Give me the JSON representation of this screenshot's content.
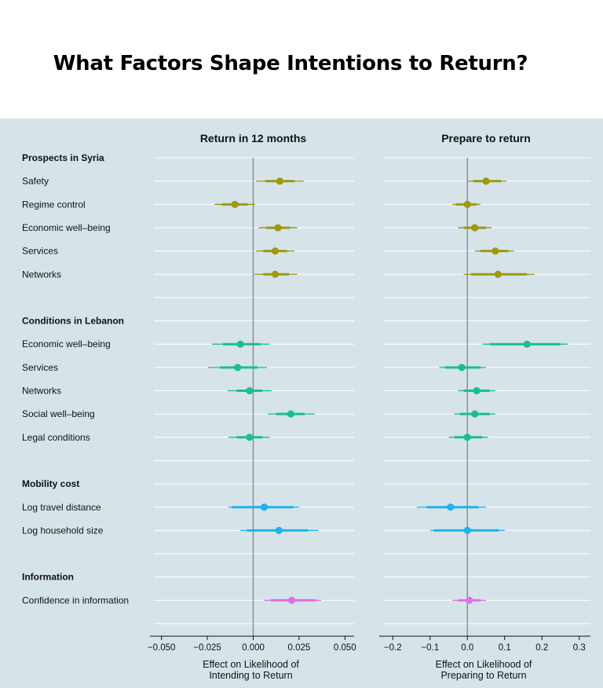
{
  "page_title": "What Factors Shape Intentions to Return?",
  "colors": {
    "background": "#d6e4ea",
    "prospects": "#9e9a0b",
    "conditions": "#19c08c",
    "mobility": "#1ab4ee",
    "information": "#e070e6",
    "zero_line": "#8a8a8a",
    "gridline": "#ffffff"
  },
  "chart_data": [
    {
      "type": "scatter",
      "subtype": "coefficient-plot",
      "title": "Return in 12 months",
      "xlabel_lines": [
        "Effect on Likelihood of",
        "Intending to Return"
      ],
      "xlim": [
        -0.055,
        0.055
      ],
      "xticks": [
        -0.05,
        -0.025,
        0.0,
        0.025,
        0.05
      ],
      "xtick_labels": [
        "−0.050",
        "−0.025",
        "0.000",
        "0.025",
        "0.050"
      ],
      "reference_line": 0,
      "grid": true,
      "points": [
        {
          "group": "Prospects in Syria",
          "label": "Safety",
          "estimate": 0.0145,
          "ci90": [
            0.0065,
            0.0225
          ],
          "ci95": [
            0.0015,
            0.0275
          ]
        },
        {
          "group": "Prospects in Syria",
          "label": "Regime control",
          "estimate": -0.01,
          "ci90": [
            -0.017,
            -0.003
          ],
          "ci95": [
            -0.021,
            0.001
          ]
        },
        {
          "group": "Prospects in Syria",
          "label": "Economic well-being",
          "estimate": 0.0135,
          "ci90": [
            0.007,
            0.02
          ],
          "ci95": [
            0.003,
            0.024
          ]
        },
        {
          "group": "Prospects in Syria",
          "label": "Services",
          "estimate": 0.012,
          "ci90": [
            0.0055,
            0.0185
          ],
          "ci95": [
            0.0015,
            0.0225
          ]
        },
        {
          "group": "Prospects in Syria",
          "label": "Networks",
          "estimate": 0.012,
          "ci90": [
            0.0055,
            0.0195
          ],
          "ci95": [
            0.0005,
            0.024
          ]
        },
        {
          "group": "Conditions in Lebanon",
          "label": "Economic well-being",
          "estimate": -0.007,
          "ci90": [
            -0.0165,
            0.004
          ],
          "ci95": [
            -0.0225,
            0.009
          ]
        },
        {
          "group": "Conditions in Lebanon",
          "label": "Services",
          "estimate": -0.0085,
          "ci90": [
            -0.018,
            0.0025
          ],
          "ci95": [
            -0.0245,
            0.0075
          ]
        },
        {
          "group": "Conditions in Lebanon",
          "label": "Networks",
          "estimate": -0.002,
          "ci90": [
            -0.009,
            0.005
          ],
          "ci95": [
            -0.014,
            0.01
          ]
        },
        {
          "group": "Conditions in Lebanon",
          "label": "Social well-being",
          "estimate": 0.0205,
          "ci90": [
            0.0125,
            0.028
          ],
          "ci95": [
            0.008,
            0.0335
          ]
        },
        {
          "group": "Conditions in Lebanon",
          "label": "Legal conditions",
          "estimate": -0.002,
          "ci90": [
            -0.009,
            0.005
          ],
          "ci95": [
            -0.0135,
            0.009
          ]
        },
        {
          "group": "Mobility cost",
          "label": "Log travel distance",
          "estimate": 0.006,
          "ci90": [
            -0.0115,
            0.022
          ],
          "ci95": [
            -0.0135,
            0.025
          ]
        },
        {
          "group": "Mobility cost",
          "label": "Log household size",
          "estimate": 0.014,
          "ci90": [
            -0.0035,
            0.03
          ],
          "ci95": [
            -0.007,
            0.0355
          ]
        },
        {
          "group": "Information",
          "label": "Confidence in information",
          "estimate": 0.021,
          "ci90": [
            0.0095,
            0.034
          ],
          "ci95": [
            0.006,
            0.037
          ]
        }
      ]
    },
    {
      "type": "scatter",
      "subtype": "coefficient-plot",
      "title": "Prepare to return",
      "xlabel_lines": [
        "Effect on Likelihood of",
        "Preparing to Return"
      ],
      "xlim": [
        -0.23,
        0.33
      ],
      "xticks": [
        -0.2,
        -0.1,
        0.0,
        0.1,
        0.2,
        0.3
      ],
      "xtick_labels": [
        "−0.2",
        "−0.1",
        "0.0",
        "0.1",
        "0.2",
        "0.3"
      ],
      "reference_line": 0,
      "grid": true,
      "points": [
        {
          "group": "Prospects in Syria",
          "label": "Safety",
          "estimate": 0.05,
          "ci90": [
            0.015,
            0.09
          ],
          "ci95": [
            0.0,
            0.105
          ]
        },
        {
          "group": "Prospects in Syria",
          "label": "Regime control",
          "estimate": 0.0,
          "ci90": [
            -0.03,
            0.025
          ],
          "ci95": [
            -0.04,
            0.035
          ]
        },
        {
          "group": "Prospects in Syria",
          "label": "Economic well-being",
          "estimate": 0.02,
          "ci90": [
            -0.01,
            0.05
          ],
          "ci95": [
            -0.025,
            0.065
          ]
        },
        {
          "group": "Prospects in Syria",
          "label": "Services",
          "estimate": 0.075,
          "ci90": [
            0.035,
            0.11
          ],
          "ci95": [
            0.02,
            0.125
          ]
        },
        {
          "group": "Prospects in Syria",
          "label": "Networks",
          "estimate": 0.082,
          "ci90": [
            0.01,
            0.16
          ],
          "ci95": [
            -0.01,
            0.18
          ]
        },
        {
          "group": "Conditions in Lebanon",
          "label": "Economic well-being",
          "estimate": 0.16,
          "ci90": [
            0.06,
            0.25
          ],
          "ci95": [
            0.04,
            0.27
          ]
        },
        {
          "group": "Conditions in Lebanon",
          "label": "Services",
          "estimate": -0.015,
          "ci90": [
            -0.06,
            0.035
          ],
          "ci95": [
            -0.075,
            0.05
          ]
        },
        {
          "group": "Conditions in Lebanon",
          "label": "Networks",
          "estimate": 0.025,
          "ci90": [
            -0.01,
            0.06
          ],
          "ci95": [
            -0.025,
            0.075
          ]
        },
        {
          "group": "Conditions in Lebanon",
          "label": "Social well-being",
          "estimate": 0.02,
          "ci90": [
            -0.02,
            0.06
          ],
          "ci95": [
            -0.035,
            0.075
          ]
        },
        {
          "group": "Conditions in Lebanon",
          "label": "Legal conditions",
          "estimate": 0.0,
          "ci90": [
            -0.035,
            0.04
          ],
          "ci95": [
            -0.05,
            0.055
          ]
        },
        {
          "group": "Mobility cost",
          "label": "Log travel distance",
          "estimate": -0.045,
          "ci90": [
            -0.11,
            0.03
          ],
          "ci95": [
            -0.135,
            0.05
          ]
        },
        {
          "group": "Mobility cost",
          "label": "Log household size",
          "estimate": 0.0,
          "ci90": [
            -0.09,
            0.085
          ],
          "ci95": [
            -0.1,
            0.1
          ]
        },
        {
          "group": "Information",
          "label": "Confidence in information",
          "estimate": 0.005,
          "ci90": [
            -0.025,
            0.035
          ],
          "ci95": [
            -0.04,
            0.05
          ]
        }
      ]
    }
  ],
  "rows": [
    {
      "kind": "header",
      "text": "Prospects in Syria",
      "color_key": ""
    },
    {
      "kind": "item",
      "text": "Safety",
      "color_key": "prospects"
    },
    {
      "kind": "item",
      "text": "Regime control",
      "color_key": "prospects"
    },
    {
      "kind": "item",
      "text": "Economic well–being",
      "color_key": "prospects"
    },
    {
      "kind": "item",
      "text": "Services",
      "color_key": "prospects"
    },
    {
      "kind": "item",
      "text": "Networks",
      "color_key": "prospects"
    },
    {
      "kind": "blank",
      "text": "",
      "color_key": ""
    },
    {
      "kind": "header",
      "text": "Conditions in Lebanon",
      "color_key": ""
    },
    {
      "kind": "item",
      "text": "Economic well–being",
      "color_key": "conditions"
    },
    {
      "kind": "item",
      "text": "Services",
      "color_key": "conditions"
    },
    {
      "kind": "item",
      "text": "Networks",
      "color_key": "conditions"
    },
    {
      "kind": "item",
      "text": "Social well–being",
      "color_key": "conditions"
    },
    {
      "kind": "item",
      "text": "Legal conditions",
      "color_key": "conditions"
    },
    {
      "kind": "blank",
      "text": "",
      "color_key": ""
    },
    {
      "kind": "header",
      "text": "Mobility cost",
      "color_key": ""
    },
    {
      "kind": "item",
      "text": "Log travel distance",
      "color_key": "mobility"
    },
    {
      "kind": "item",
      "text": "Log household size",
      "color_key": "mobility"
    },
    {
      "kind": "blank",
      "text": "",
      "color_key": ""
    },
    {
      "kind": "header",
      "text": "Information",
      "color_key": ""
    },
    {
      "kind": "item",
      "text": "Confidence in information",
      "color_key": "information"
    },
    {
      "kind": "blank",
      "text": "",
      "color_key": ""
    }
  ]
}
